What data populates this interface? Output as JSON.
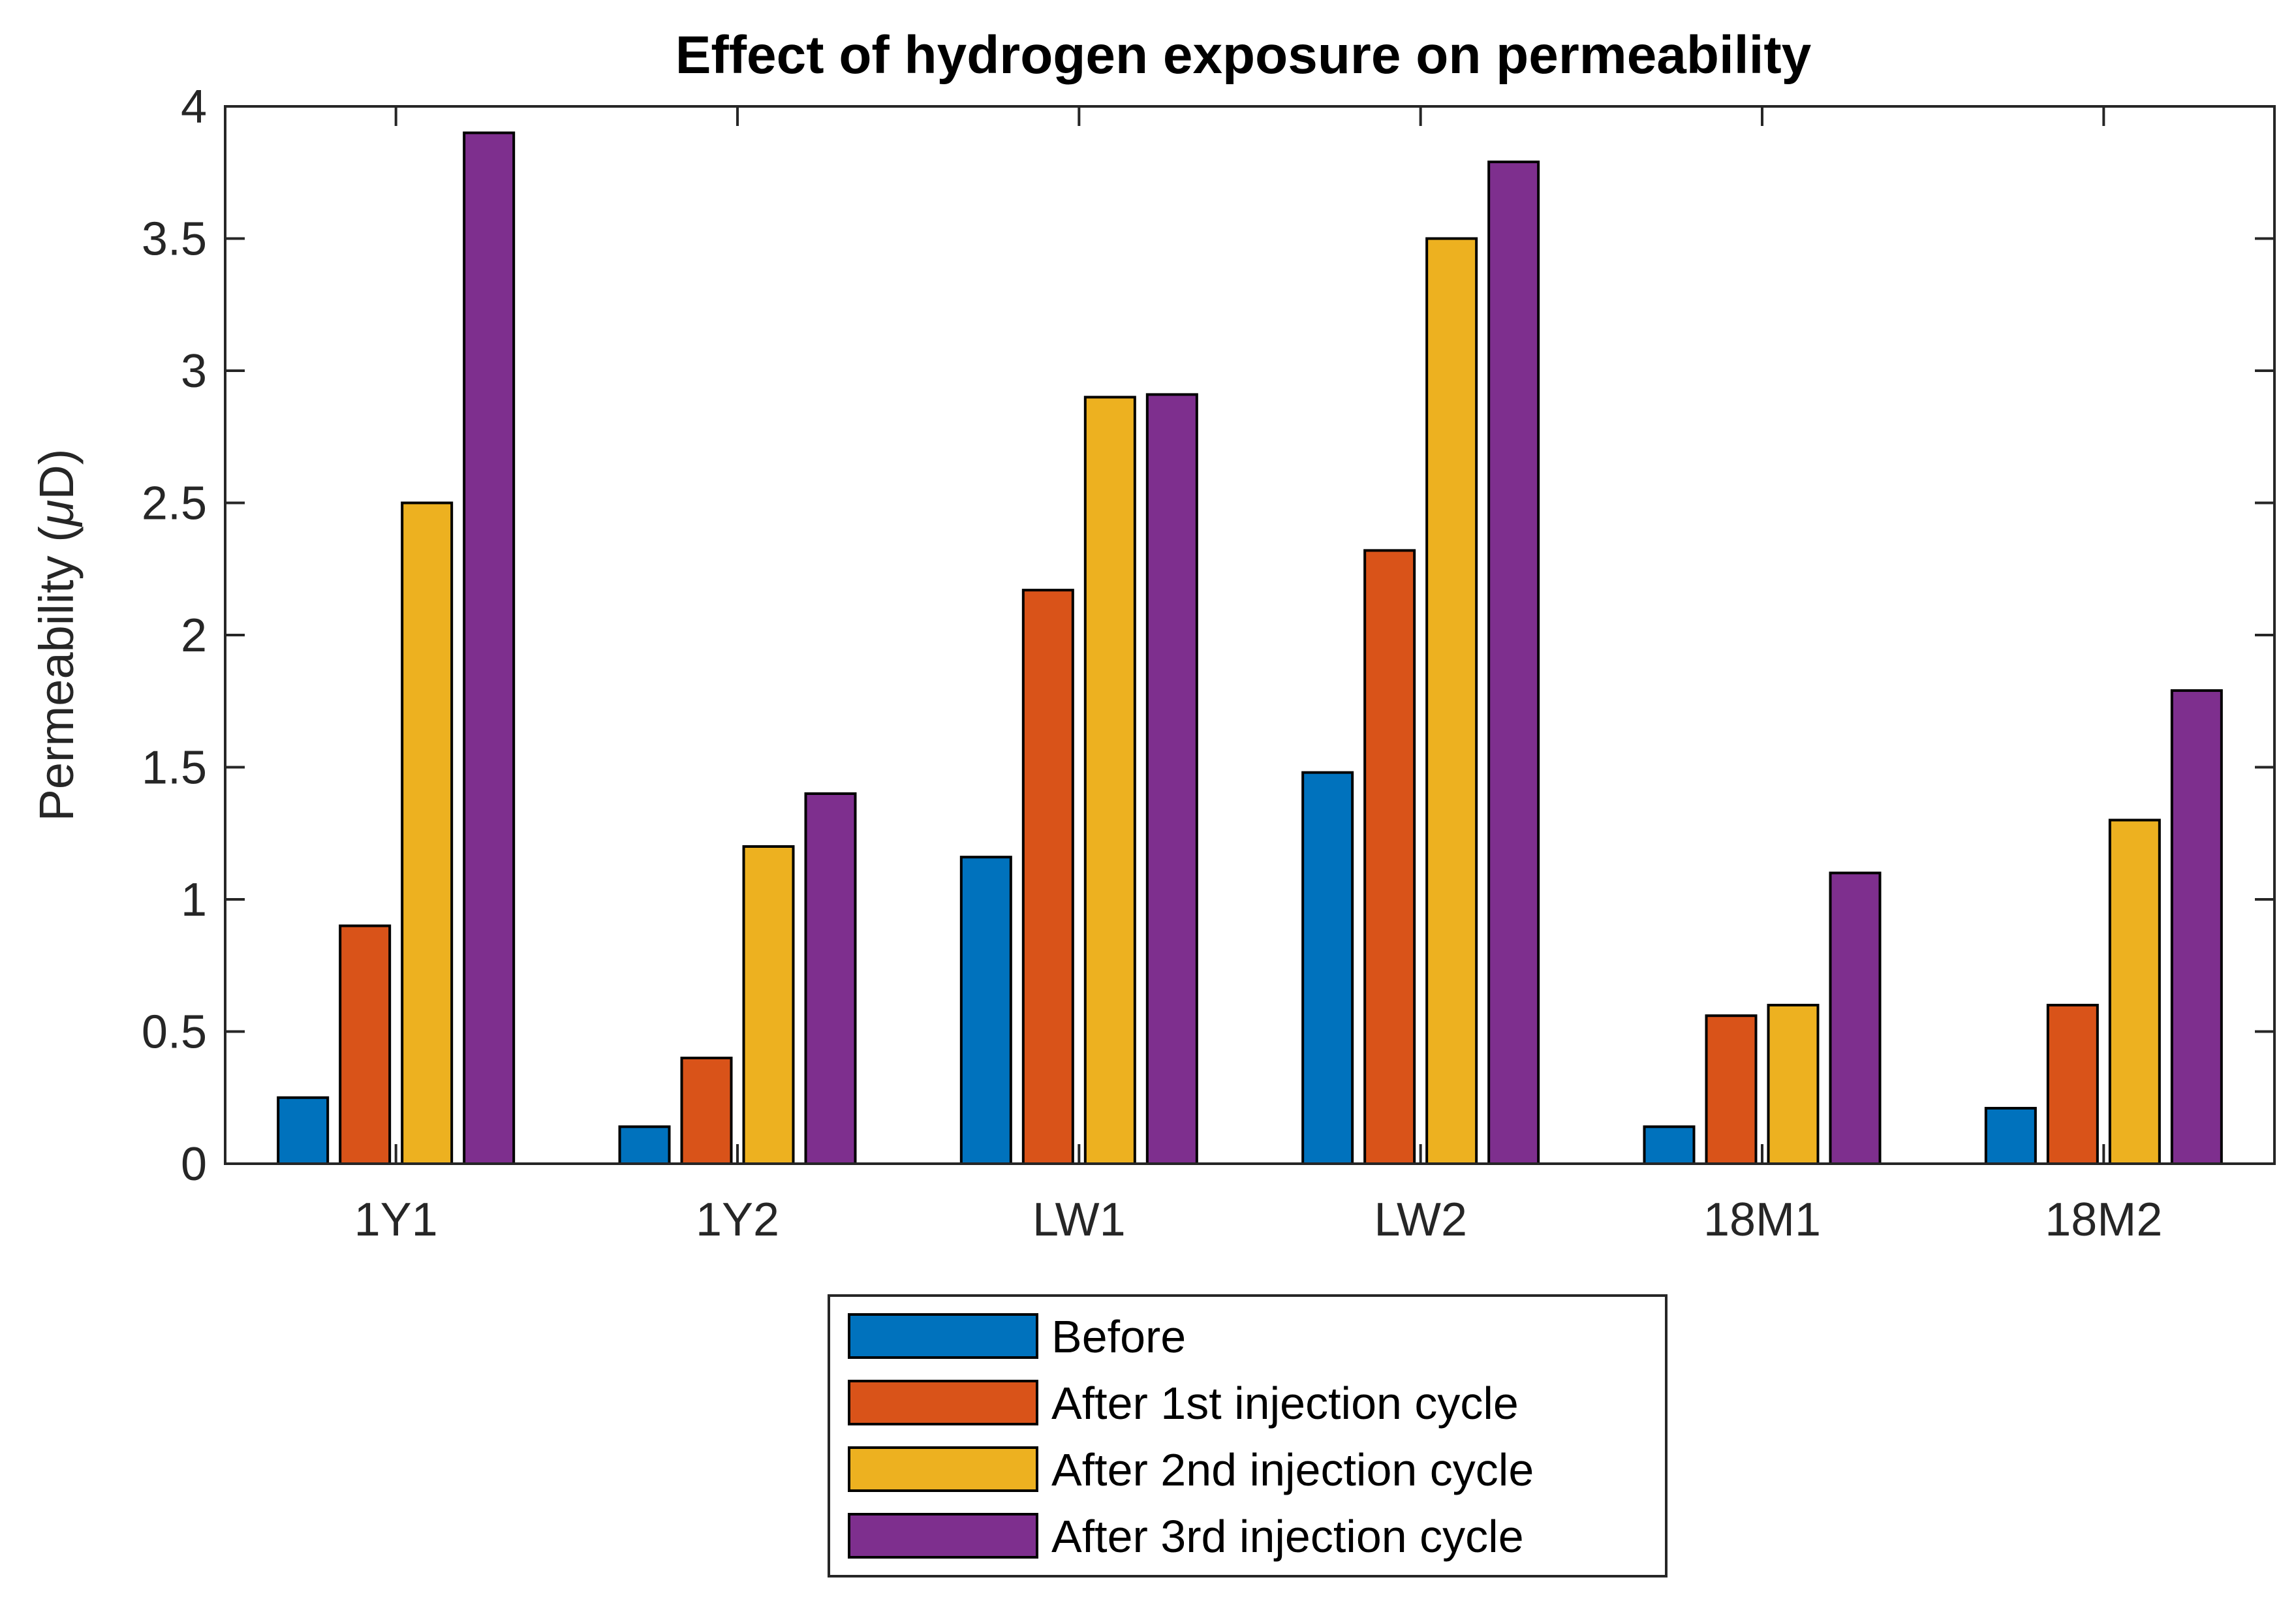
{
  "chart_data": {
    "type": "bar",
    "title": "Effect of hydrogen exposure on permeability",
    "xlabel": "",
    "ylabel_prefix": "Permeability (",
    "ylabel_unit_greek": "μ",
    "ylabel_suffix": "D)",
    "ylim": [
      0,
      4
    ],
    "yticks": [
      0,
      0.5,
      1,
      1.5,
      2,
      2.5,
      3,
      3.5,
      4
    ],
    "ytick_labels": [
      "0",
      "0.5",
      "1",
      "1.5",
      "2",
      "2.5",
      "3",
      "3.5",
      "4"
    ],
    "categories": [
      "1Y1",
      "1Y2",
      "LW1",
      "LW2",
      "18M1",
      "18M2"
    ],
    "series": [
      {
        "name": "Before",
        "color": "#0072BD",
        "values": [
          0.25,
          0.14,
          1.16,
          1.48,
          0.14,
          0.21
        ]
      },
      {
        "name": "After 1st injection cycle",
        "color": "#D95319",
        "values": [
          0.9,
          0.4,
          2.17,
          2.32,
          0.56,
          0.6
        ]
      },
      {
        "name": "After 2nd injection cycle",
        "color": "#EDB120",
        "values": [
          2.5,
          1.2,
          2.9,
          3.5,
          0.6,
          1.3
        ]
      },
      {
        "name": "After 3rd injection cycle",
        "color": "#7E2F8E",
        "values": [
          3.9,
          1.4,
          2.91,
          3.79,
          1.1,
          1.79
        ]
      }
    ],
    "grid": false,
    "legend_position": "bottom-center-outside"
  }
}
